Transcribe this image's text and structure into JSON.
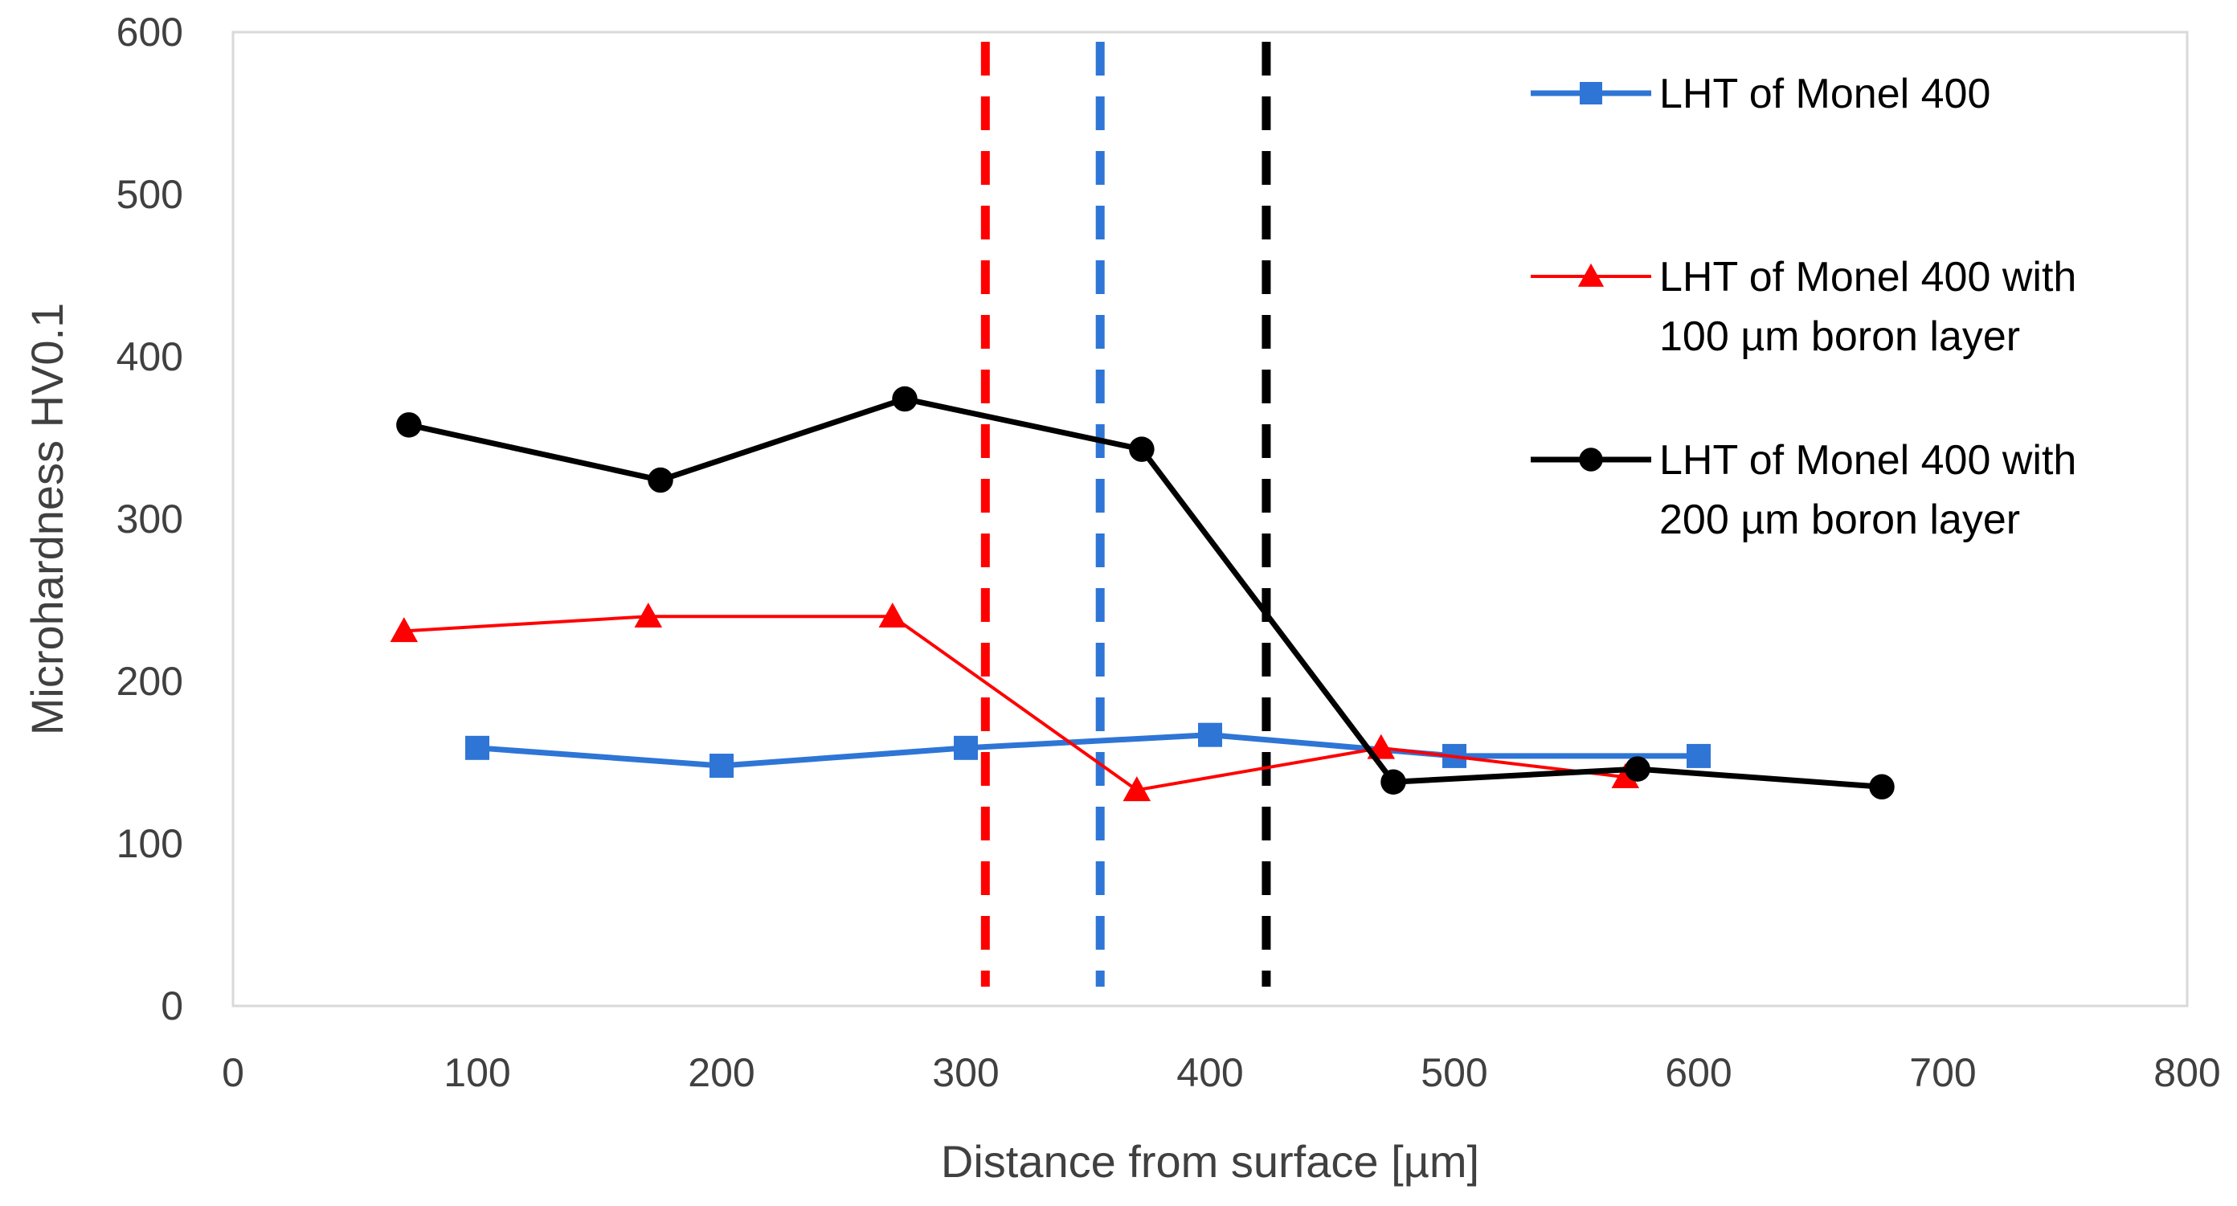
{
  "chart_data": {
    "type": "line",
    "title": "",
    "xlabel": "Distance from surface [µm]",
    "ylabel": "Microhardness HV0.1",
    "xlim": [
      0,
      800
    ],
    "ylim": [
      0,
      600
    ],
    "xticks": [
      0,
      100,
      200,
      300,
      400,
      500,
      600,
      700,
      800
    ],
    "yticks": [
      0,
      100,
      200,
      300,
      400,
      500,
      600
    ],
    "grid": false,
    "legend_position": "top-right",
    "series": [
      {
        "name": "LHT of Monel 400",
        "legend_lines": [
          "LHT of Monel 400"
        ],
        "color": "#2E75D6",
        "marker": "square",
        "x": [
          100,
          200,
          300,
          400,
          500,
          600
        ],
        "y": [
          159,
          148,
          159,
          167,
          154,
          154
        ]
      },
      {
        "name": "LHT of Monel 400 with 100 µm boron layer",
        "legend_lines": [
          "LHT of Monel 400 with",
          "100 µm boron layer"
        ],
        "color": "#FF0000",
        "marker": "triangle",
        "x": [
          70,
          170,
          270,
          370,
          470,
          570
        ],
        "y": [
          231,
          240,
          240,
          133,
          159,
          141
        ]
      },
      {
        "name": "LHT of Monel 400 with 200 µm boron layer",
        "legend_lines": [
          "LHT of Monel 400 with",
          "200 µm boron layer"
        ],
        "color": "#000000",
        "marker": "circle",
        "x": [
          72,
          175,
          275,
          372,
          475,
          575,
          675
        ],
        "y": [
          358,
          324,
          374,
          343,
          138,
          146,
          135
        ]
      }
    ],
    "reference_lines": [
      {
        "x": 308,
        "color": "#FF0000",
        "style": "dashed"
      },
      {
        "x": 355,
        "color": "#2E75D6",
        "style": "dashed"
      },
      {
        "x": 423,
        "color": "#000000",
        "style": "dashed"
      }
    ]
  }
}
